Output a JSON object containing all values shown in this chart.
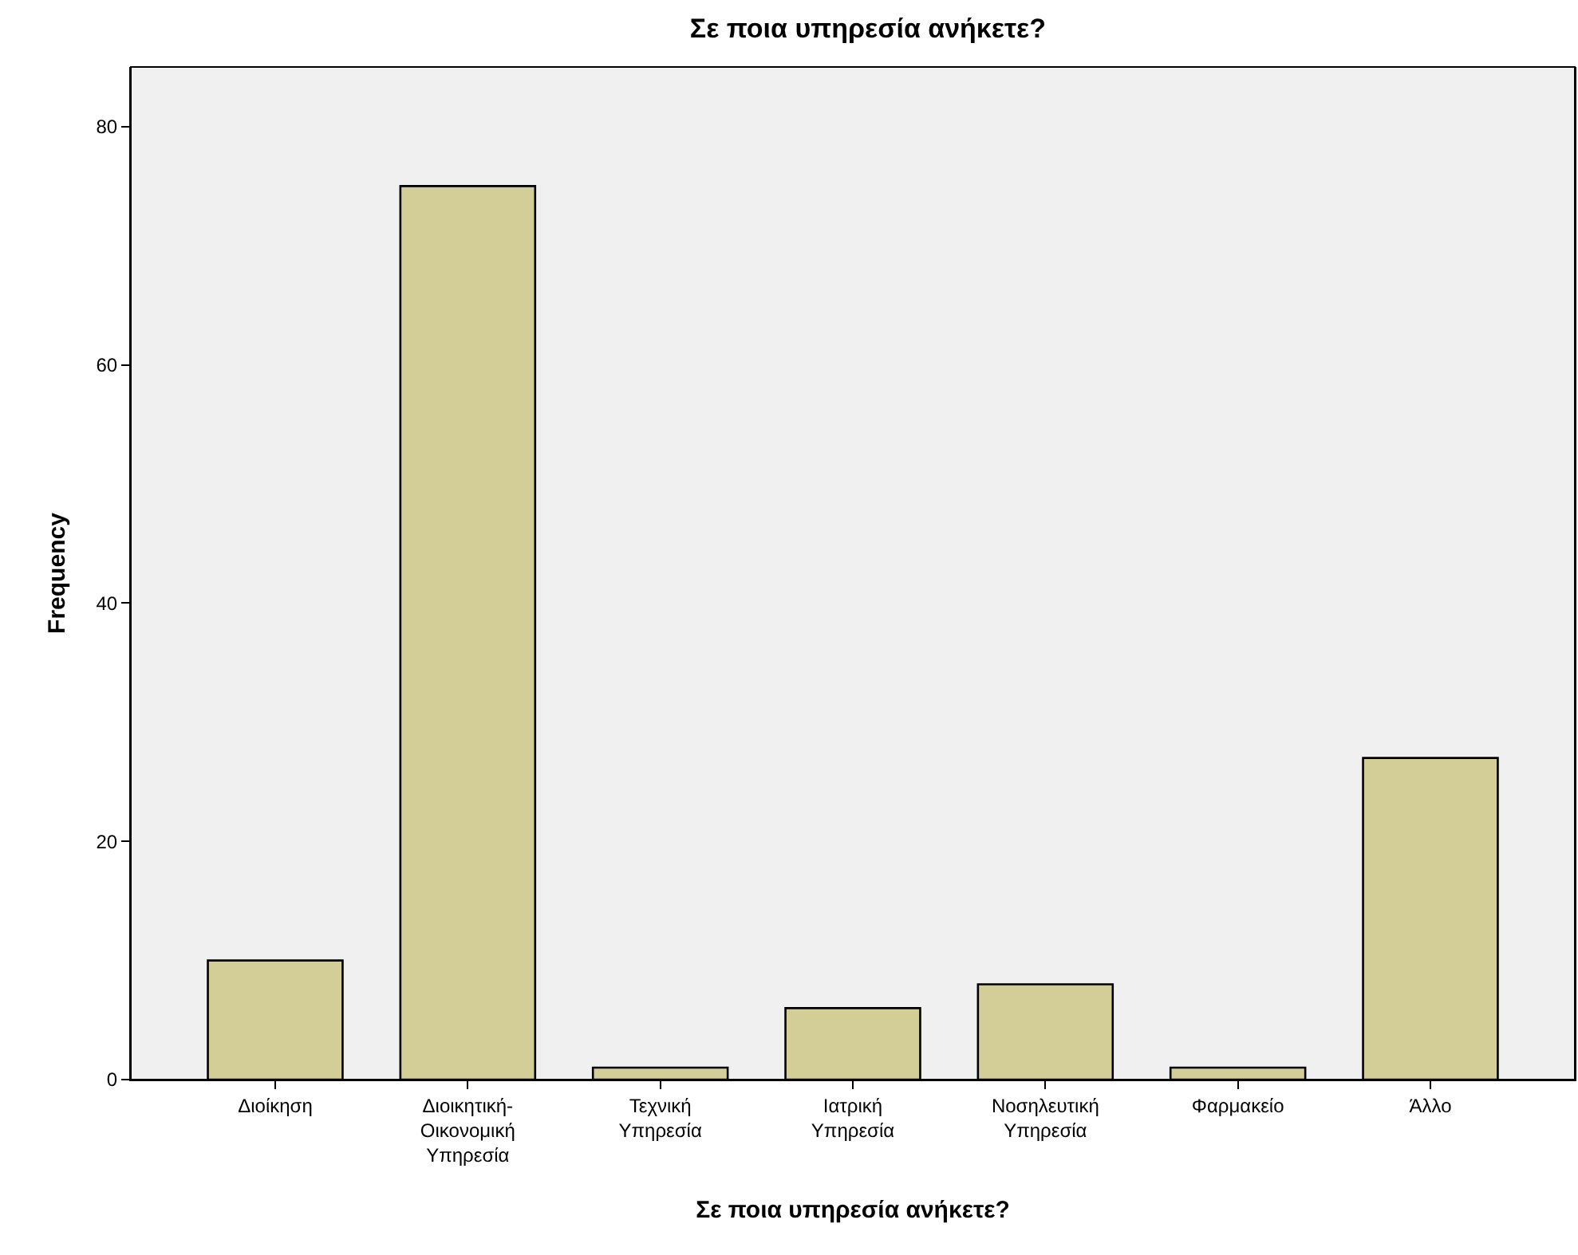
{
  "chart_data": {
    "type": "bar",
    "title": "Σε ποια υπηρεσία ανήκετε?",
    "xlabel": "Σε ποια υπηρεσία ανήκετε?",
    "ylabel": "Frequency",
    "categories": [
      "Διοίκηση",
      "Διοικητική-Οικονομική Υπηρεσία",
      "Τεχνική Υπηρεσία",
      "Ιατρική Υπηρεσία",
      "Νοσηλευτική Υπηρεσία",
      "Φαρμακείο",
      "Άλλο"
    ],
    "values": [
      10,
      75,
      1,
      6,
      8,
      1,
      27
    ],
    "color": "#d3ce97",
    "ylim": [
      0,
      85
    ],
    "yticks": [
      0,
      20,
      40,
      60,
      80
    ],
    "grid": false,
    "legend": false
  }
}
